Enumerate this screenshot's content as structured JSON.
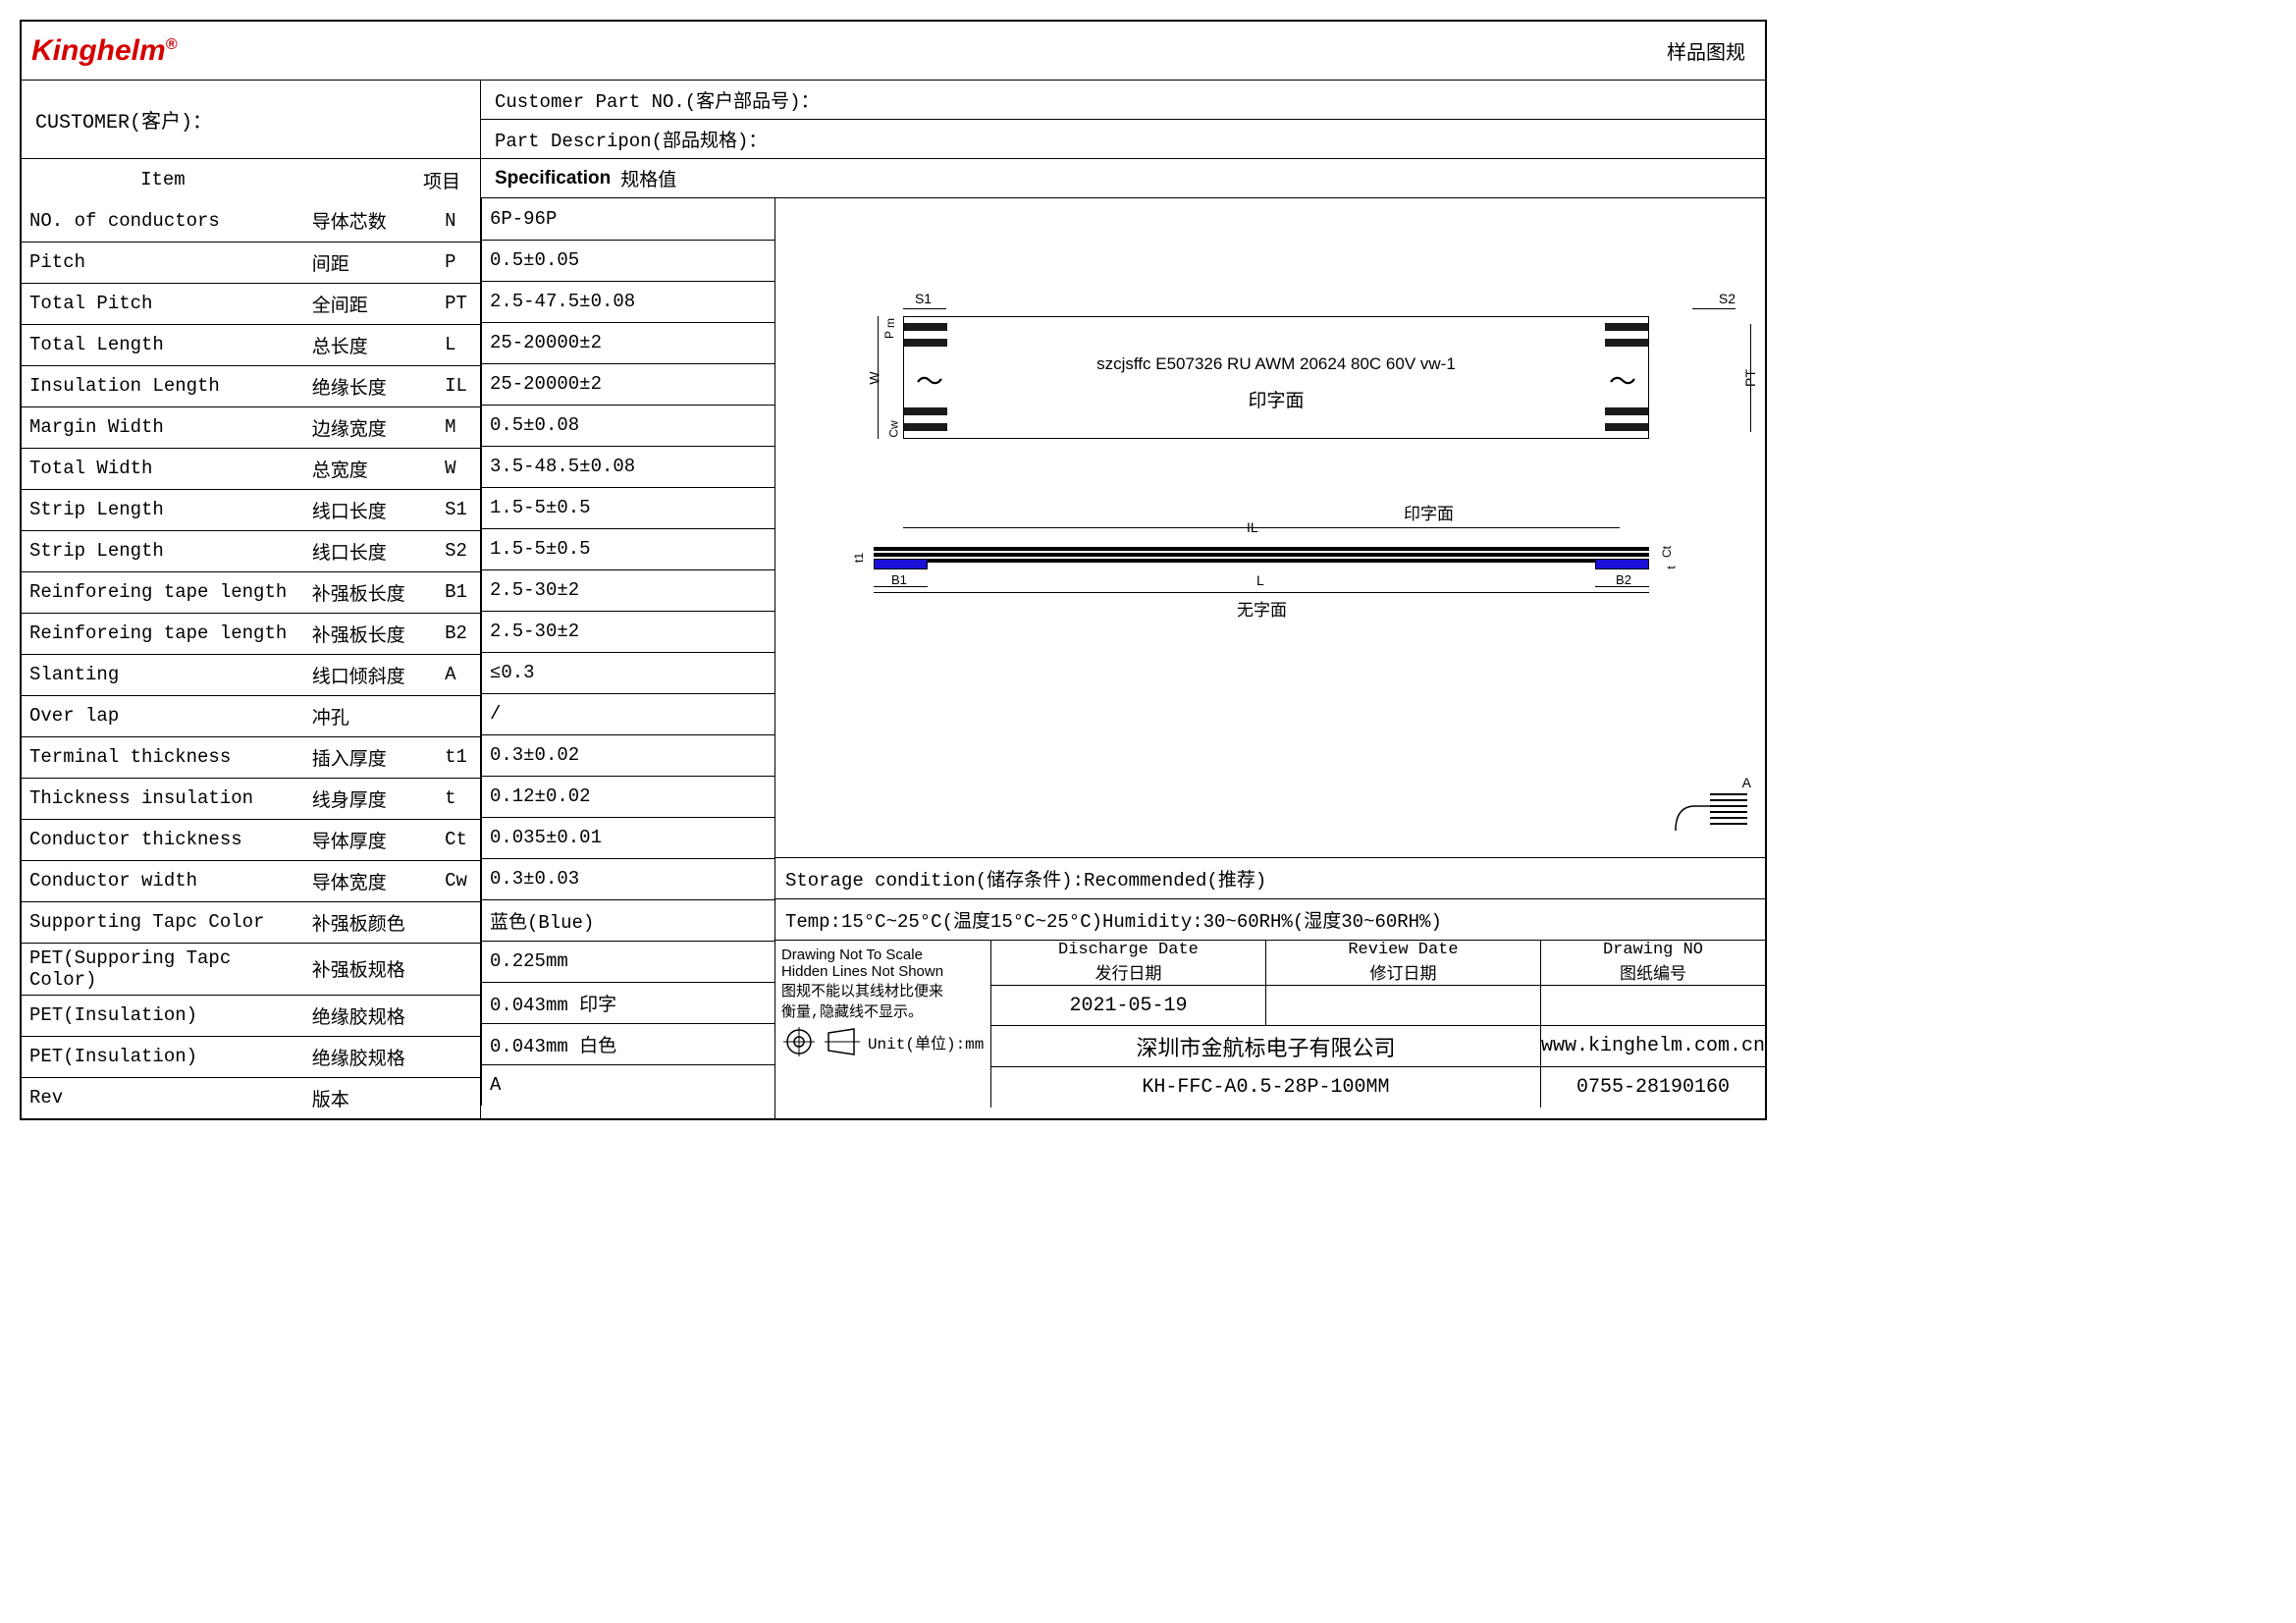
{
  "logo": "Kinghelm",
  "top_right": "样品图规",
  "customer_label": "CUSTOMER(客户)：",
  "customer_part_label": "Customer Part NO.(客户部品号)：",
  "part_desc_label": "Part Descripon(部品规格)：",
  "header": {
    "item": "Item",
    "xiangmu": "项目",
    "spec_en": "Specification",
    "spec_cn": "规格值"
  },
  "rows": [
    {
      "en": "NO. of conductors",
      "cn": "导体芯数",
      "sym": "N",
      "val": "6P-96P"
    },
    {
      "en": "Pitch",
      "cn": "间距",
      "sym": "P",
      "val": "0.5±0.05"
    },
    {
      "en": "Total Pitch",
      "cn": "全间距",
      "sym": "PT",
      "val": "2.5-47.5±0.08"
    },
    {
      "en": "Total Length",
      "cn": "总长度",
      "sym": "L",
      "val": "25-20000±2"
    },
    {
      "en": "Insulation Length",
      "cn": "绝缘长度",
      "sym": "IL",
      "val": "25-20000±2"
    },
    {
      "en": "Margin Width",
      "cn": "边缘宽度",
      "sym": "M",
      "val": "0.5±0.08"
    },
    {
      "en": "Total Width",
      "cn": "总宽度",
      "sym": "W",
      "val": "3.5-48.5±0.08"
    },
    {
      "en": "Strip Length",
      "cn": "线口长度",
      "sym": "S1",
      "val": "1.5-5±0.5"
    },
    {
      "en": "Strip Length",
      "cn": "线口长度",
      "sym": "S2",
      "val": "1.5-5±0.5"
    },
    {
      "en": "Reinforeing tape length",
      "cn": "补强板长度",
      "sym": "B1",
      "val": "2.5-30±2"
    },
    {
      "en": "Reinforeing tape length",
      "cn": "补强板长度",
      "sym": "B2",
      "val": "2.5-30±2"
    },
    {
      "en": "Slanting",
      "cn": "线口倾斜度",
      "sym": "A",
      "val": "≤0.3"
    },
    {
      "en": "Over lap",
      "cn": "冲孔",
      "sym": "",
      "val": "  /"
    },
    {
      "en": "Terminal thickness",
      "cn": "插入厚度",
      "sym": "t1",
      "val": "0.3±0.02"
    },
    {
      "en": "Thickness insulation",
      "cn": "线身厚度",
      "sym": "t",
      "val": "0.12±0.02"
    },
    {
      "en": "Conductor thickness",
      "cn": "导体厚度",
      "sym": "Ct",
      "val": "0.035±0.01"
    },
    {
      "en": "Conductor width",
      "cn": "导体宽度",
      "sym": "Cw",
      "val": "0.3±0.03"
    },
    {
      "en": "Supporting Tapc Color",
      "cn": "补强板颜色",
      "sym": "",
      "val": "蓝色(Blue)"
    },
    {
      "en": "PET(Supporing Tapc Color)",
      "cn": "补强板规格",
      "sym": "",
      "val": "0.225mm"
    },
    {
      "en": "PET(Insulation)",
      "cn": "绝缘胶规格",
      "sym": "",
      "val": "0.043mm 印字"
    },
    {
      "en": "PET(Insulation)",
      "cn": "绝缘胶规格",
      "sym": "",
      "val": "0.043mm 白色"
    },
    {
      "en": "Rev",
      "cn": "版本",
      "sym": "",
      "val": "A"
    }
  ],
  "diagram": {
    "cable_text": "szcjsffc E507326 RU AWM 20624 80C 60V vw-1",
    "print_face": "印字面",
    "no_print_face": "无字面",
    "labels": {
      "S1": "S1",
      "S2": "S2",
      "W": "W",
      "P": "P",
      "m": "m",
      "Cw": "Cw",
      "PT": "PT",
      "IL": "IL",
      "L": "L",
      "B1": "B1",
      "B2": "B2",
      "t1": "t1",
      "t": "t",
      "Ct": "Ct",
      "A": "A"
    },
    "colors": {
      "blue_tab": "#1a10d8",
      "stripe": "#1a1a1a"
    }
  },
  "storage_label": "Storage condition(储存条件):Recommended(推荐)",
  "temp_humidity": "Temp:15°C~25°C(温度15°C~25°C)Humidity:30~60RH%(湿度30~60RH%)",
  "footer": {
    "scale_en1": "Drawing Not To Scale",
    "scale_en2": "Hidden Lines Not Shown",
    "scale_cn1": "图规不能以其线材比便来",
    "scale_cn2": "衡量,隐藏线不显示。",
    "unit_label": "Unit(单位):mm",
    "discharge_en": "Discharge Date",
    "discharge_cn": "发行日期",
    "review_en": "Review Date",
    "review_cn": "修订日期",
    "drawing_en": "Drawing NO",
    "drawing_cn": "图纸编号",
    "discharge_val": "2021-05-19",
    "review_val": "",
    "drawing_val": "",
    "company": "深圳市金航标电子有限公司",
    "website": "www.kinghelm.com.cn",
    "part_no": "KH-FFC-A0.5-28P-100MM",
    "phone": "0755-28190160"
  }
}
